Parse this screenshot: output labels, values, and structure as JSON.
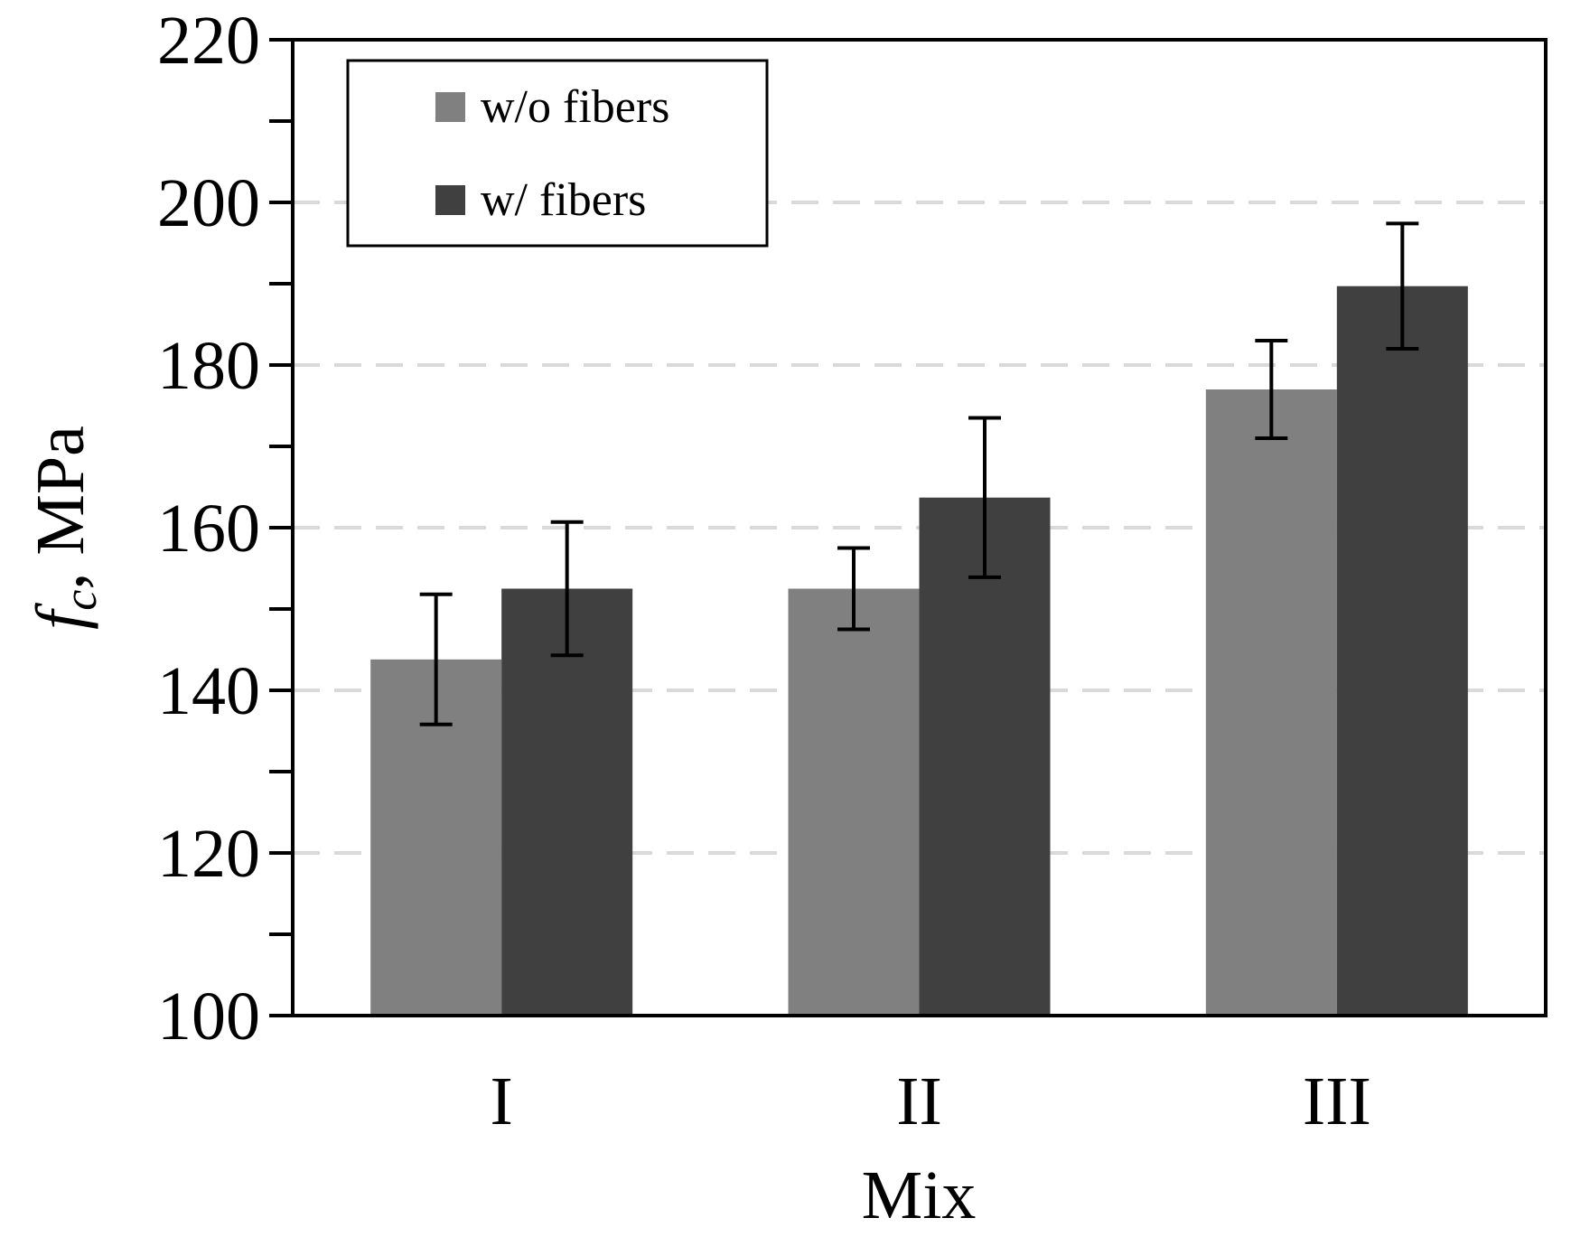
{
  "chart_data": {
    "type": "bar",
    "categories": [
      "I",
      "II",
      "III"
    ],
    "series": [
      {
        "name": "w/o fibers",
        "values": [
          143.8,
          152.5,
          177.0
        ],
        "error": [
          8.0,
          5.0,
          6.0
        ],
        "color": "#808080"
      },
      {
        "name": "w/ fibers",
        "values": [
          152.5,
          163.7,
          189.7
        ],
        "error": [
          8.2,
          9.8,
          7.7
        ],
        "color": "#404040"
      }
    ],
    "ylim": [
      100,
      220
    ],
    "yticks": [
      100,
      120,
      140,
      160,
      180,
      200,
      220
    ],
    "ytick_labels": [
      "100",
      "120",
      "140",
      "160",
      "180",
      "200",
      "220"
    ],
    "minor_step": 10,
    "gridlines": [
      120,
      140,
      160,
      180,
      200
    ],
    "xlabel": "Mix",
    "ylabel_symbol": "f",
    "ylabel_subscript": "c",
    "ylabel_rest": ", MPa",
    "legend_position": "top-left",
    "grid_color": "#d9d9d9"
  }
}
